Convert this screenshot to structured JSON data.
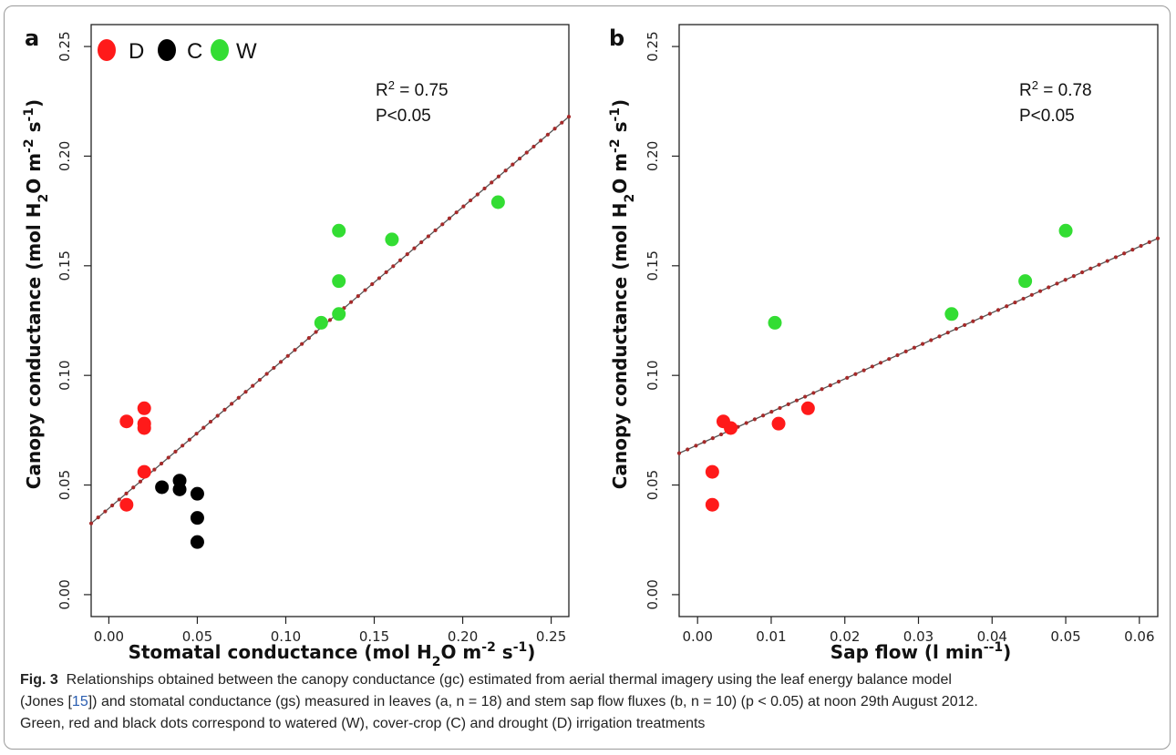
{
  "caption": {
    "fig_label": "Fig. 3",
    "line1": "Relationships obtained between the canopy conductance (gc) estimated from aerial thermal imagery using the leaf energy balance model",
    "line2_a": "(Jones [",
    "line2_ref": "15",
    "line2_b": "]) and stomatal conductance (gs) measured in leaves (a, n = 18) and stem sap flow fluxes (b, n = 10) (p < 0.05) at noon 29th August 2012.",
    "line3": "Green, red and black dots correspond to watered (W), cover-crop (C) and drought (D) irrigation treatments"
  },
  "colors": {
    "D": "#ff1a1a",
    "C": "#000000",
    "W": "#33dd33",
    "fit": "#a52a2a",
    "fit_line": "#555555"
  },
  "chart_data": [
    {
      "type": "scatter",
      "panel_label": "a",
      "xlabel": "Stomatal conductance (mol H2O m-2 s-1)",
      "ylabel": "Canopy conductance (mol H2O m-2 s-1)",
      "xlim": [
        -0.01,
        0.26
      ],
      "ylim": [
        -0.01,
        0.26
      ],
      "x_ticks": [
        0.0,
        0.05,
        0.1,
        0.15,
        0.2,
        0.25
      ],
      "y_ticks": [
        0.0,
        0.05,
        0.1,
        0.15,
        0.2,
        0.25
      ],
      "x_tick_labels": [
        "0.00",
        "0.05",
        "0.10",
        "0.15",
        "0.20",
        "0.25"
      ],
      "y_tick_labels": [
        "0.00",
        "0.05",
        "0.10",
        "0.15",
        "0.20",
        "0.25"
      ],
      "annotation_r2": "R2 = 0.75",
      "annotation_p": "P<0.05",
      "legend": [
        "D",
        "C",
        "W"
      ],
      "fit": {
        "x0": -0.01,
        "y0": 0.0325,
        "x1": 0.26,
        "y1": 0.218
      },
      "series": [
        {
          "name": "D",
          "points": [
            [
              0.01,
              0.079
            ],
            [
              0.02,
              0.085
            ],
            [
              0.02,
              0.078
            ],
            [
              0.02,
              0.076
            ],
            [
              0.02,
              0.056
            ],
            [
              0.01,
              0.041
            ]
          ]
        },
        {
          "name": "C",
          "points": [
            [
              0.03,
              0.049
            ],
            [
              0.04,
              0.052
            ],
            [
              0.04,
              0.048
            ],
            [
              0.05,
              0.046
            ],
            [
              0.05,
              0.035
            ],
            [
              0.05,
              0.024
            ]
          ]
        },
        {
          "name": "W",
          "points": [
            [
              0.12,
              0.124
            ],
            [
              0.13,
              0.166
            ],
            [
              0.13,
              0.143
            ],
            [
              0.13,
              0.128
            ],
            [
              0.16,
              0.162
            ],
            [
              0.22,
              0.179
            ]
          ]
        }
      ]
    },
    {
      "type": "scatter",
      "panel_label": "b",
      "xlabel": "Sap flow (l min--1)",
      "ylabel": "Canopy conductance (mol H2O m-2 s-1)",
      "xlim": [
        -0.0025,
        0.0625
      ],
      "ylim": [
        -0.01,
        0.26
      ],
      "x_ticks": [
        0.0,
        0.01,
        0.02,
        0.03,
        0.04,
        0.05,
        0.06
      ],
      "y_ticks": [
        0.0,
        0.05,
        0.1,
        0.15,
        0.2,
        0.25
      ],
      "x_tick_labels": [
        "0.00",
        "0.01",
        "0.02",
        "0.03",
        "0.04",
        "0.05",
        "0.06"
      ],
      "y_tick_labels": [
        "0.00",
        "0.05",
        "0.10",
        "0.15",
        "0.20",
        "0.25"
      ],
      "annotation_r2": "R2 = 0.78",
      "annotation_p": "P<0.05",
      "fit": {
        "x0": -0.0025,
        "y0": 0.0645,
        "x1": 0.0625,
        "y1": 0.1625
      },
      "series": [
        {
          "name": "D",
          "points": [
            [
              0.0035,
              0.079
            ],
            [
              0.0045,
              0.076
            ],
            [
              0.011,
              0.078
            ],
            [
              0.015,
              0.085
            ],
            [
              0.002,
              0.056
            ],
            [
              0.002,
              0.041
            ]
          ]
        },
        {
          "name": "W",
          "points": [
            [
              0.0105,
              0.124
            ],
            [
              0.0345,
              0.128
            ],
            [
              0.0445,
              0.143
            ],
            [
              0.05,
              0.166
            ]
          ]
        }
      ]
    }
  ]
}
